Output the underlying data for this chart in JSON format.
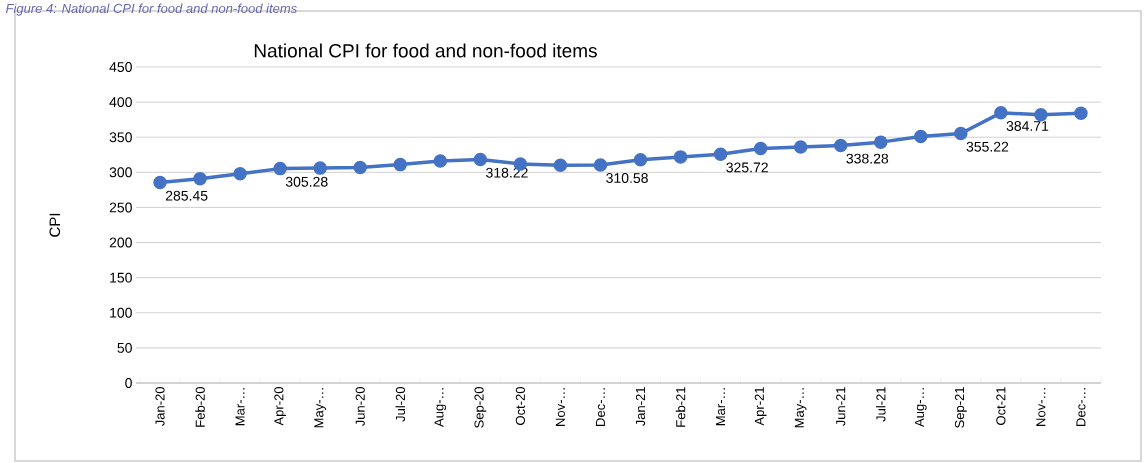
{
  "chart_data": {
    "type": "line",
    "title": "National CPI for food and non-food items",
    "ylabel": "CPI",
    "annotations": [
      "Figure 4: National CPI for food and non-food items"
    ],
    "categories": [
      "Jan-20",
      "Feb-20",
      "Mar-…",
      "Apr-20",
      "May-…",
      "Jun-20",
      "Jul-20",
      "Aug-…",
      "Sep-20",
      "Oct-20",
      "Nov-…",
      "Dec-…",
      "Jan-21",
      "Feb-21",
      "Mar-…",
      "Apr-21",
      "May-…",
      "Jun-21",
      "Jul-21",
      "Aug-…",
      "Sep-21",
      "Oct-21",
      "Nov-…",
      "Dec-…"
    ],
    "series": [
      {
        "color": "#4472c4",
        "values": [
          285.45,
          291,
          298,
          305.28,
          306,
          307,
          311,
          316,
          318.22,
          312,
          310,
          310.58,
          318,
          322,
          325.72,
          334,
          336,
          338.28,
          343,
          351,
          355.22,
          384.71,
          382,
          384
        ],
        "value_labels": [
          "285.45",
          null,
          null,
          "305.28",
          null,
          null,
          null,
          null,
          "318.22",
          null,
          null,
          "310.58",
          null,
          null,
          "325.72",
          null,
          null,
          "338.28",
          null,
          null,
          "355.22",
          "384.71",
          null,
          null
        ]
      }
    ],
    "ylim": [
      0,
      450
    ],
    "yticks": [
      0,
      50,
      100,
      150,
      200,
      250,
      300,
      350,
      400,
      450
    ],
    "grid": "y",
    "marker": "circle",
    "line_style": "solid"
  }
}
